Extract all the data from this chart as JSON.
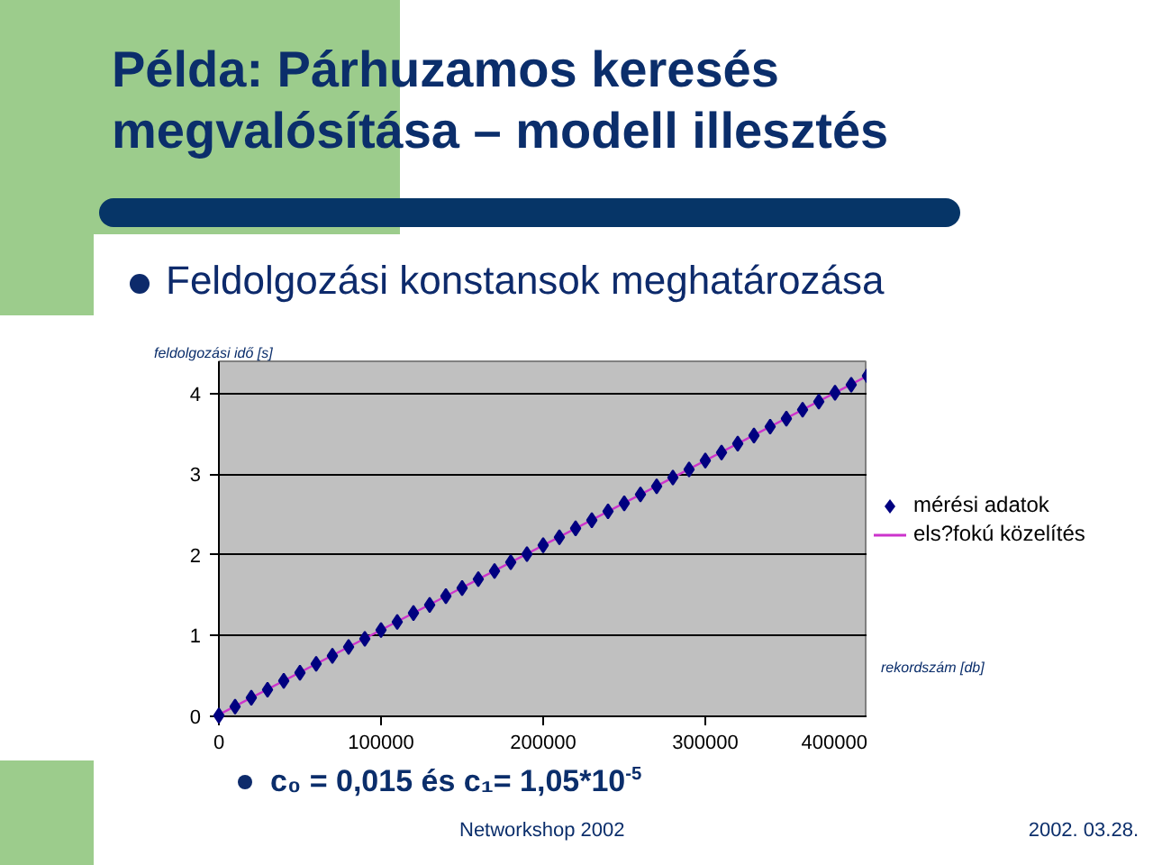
{
  "chart_data": {
    "type": "scatter",
    "title": "Példa: Párhuzamos keresés megvalósítása – modell illesztés",
    "subtitle": "Feldolgozási konstansok meghatározása",
    "ylabel": "feldolgozási idő [s]",
    "xlabel": "rekordszám [db]",
    "annotations": [
      "c₀ = 0,015  és  c₁= 1,05*10$^{-5}$",
      "Networkshop 2002",
      "2002. 03.28."
    ],
    "xlim": [
      0,
      400000
    ],
    "xticks": [
      0,
      100000,
      200000,
      300000,
      400000
    ],
    "ylim": [
      0,
      4.4
    ],
    "yticks": [
      0,
      1,
      2,
      3,
      4
    ],
    "grid": "y",
    "legend": "right",
    "marker": "diamond",
    "series": [
      {
        "name": "mérési adatok",
        "color": "#000080",
        "x": [
          0,
          10000,
          20000,
          30000,
          40000,
          50000,
          60000,
          70000,
          80000,
          90000,
          100000,
          110000,
          120000,
          130000,
          140000,
          150000,
          160000,
          170000,
          180000,
          190000,
          200000,
          210000,
          220000,
          230000,
          240000,
          250000,
          260000,
          270000,
          280000,
          290000,
          300000,
          310000,
          320000,
          330000,
          340000,
          350000,
          360000,
          370000,
          380000,
          390000,
          400000
        ],
        "values": [
          0.01,
          0.12,
          0.23,
          0.33,
          0.44,
          0.54,
          0.65,
          0.75,
          0.86,
          0.96,
          1.07,
          1.17,
          1.28,
          1.38,
          1.49,
          1.59,
          1.7,
          1.8,
          1.91,
          2.01,
          2.12,
          2.22,
          2.33,
          2.43,
          2.54,
          2.64,
          2.75,
          2.85,
          2.96,
          3.06,
          3.17,
          3.27,
          3.38,
          3.48,
          3.59,
          3.69,
          3.8,
          3.9,
          4.01,
          4.11,
          4.22
        ]
      },
      {
        "name": "els?fokú közelítés",
        "type": "line",
        "color": "#cc33cc",
        "line_style": "solid",
        "marker": "none",
        "x": [
          0,
          400000
        ],
        "values": [
          0.02,
          4.22
        ]
      }
    ]
  }
}
